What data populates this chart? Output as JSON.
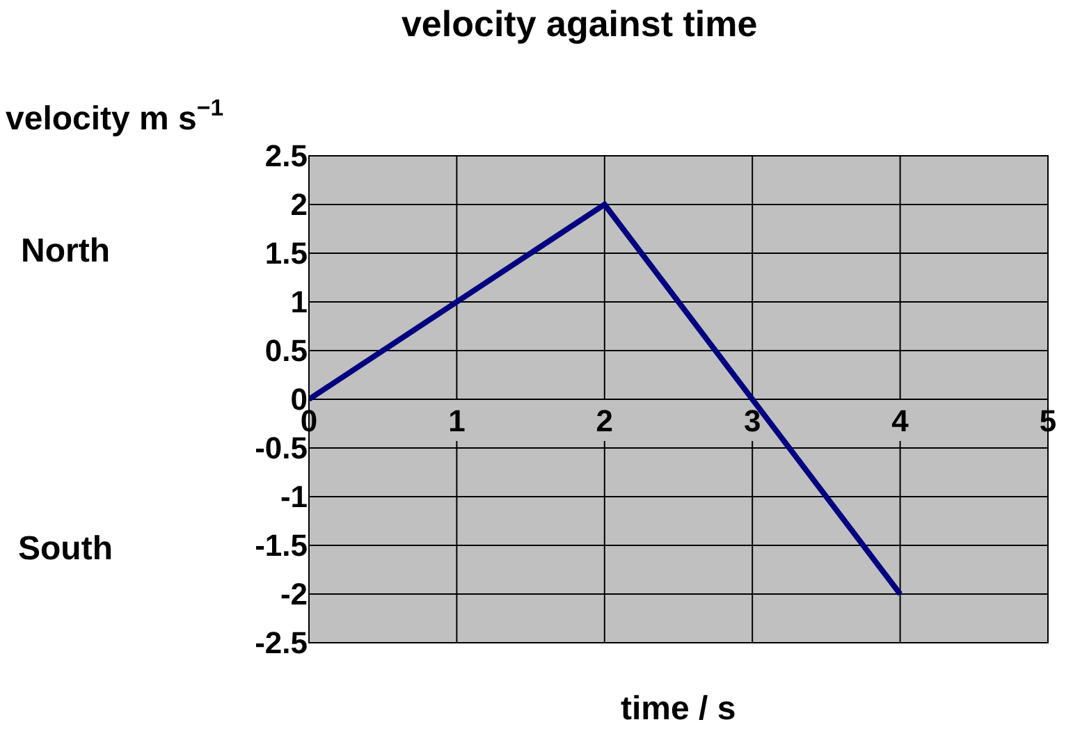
{
  "chart_data": {
    "type": "line",
    "title": "velocity against time",
    "ylabel": "velocity m s$^{−1}$",
    "xlabel": "time / s",
    "annotations": [
      "North",
      "South"
    ],
    "x": [
      0,
      2,
      4
    ],
    "series": [
      {
        "color": "#000080",
        "values": [
          0,
          2,
          -2
        ]
      }
    ],
    "xlim": [
      0,
      5
    ],
    "xticks": [
      0,
      1,
      2,
      3,
      4,
      5
    ],
    "ylim": [
      -2.5,
      2.5
    ],
    "yticks": [
      -2.5,
      -2,
      -1.5,
      -1,
      -0.5,
      0,
      0.5,
      1,
      1.5,
      2,
      2.5
    ],
    "grid": true,
    "marker": "none",
    "line_style": "solid"
  }
}
